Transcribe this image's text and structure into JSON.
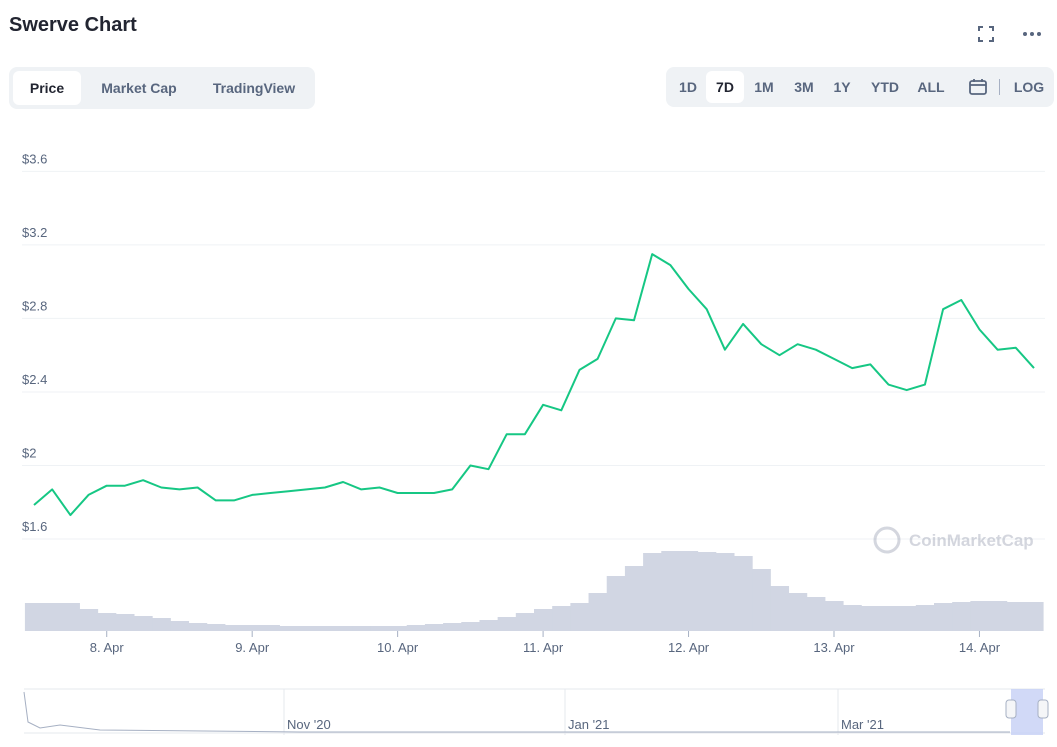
{
  "header": {
    "title": "Swerve Chart"
  },
  "tabs": [
    "Price",
    "Market Cap",
    "TradingView"
  ],
  "ranges": [
    "1D",
    "7D",
    "1M",
    "3M",
    "1Y",
    "YTD",
    "ALL"
  ],
  "log_button": "LOG",
  "watermark": "CoinMarketCap",
  "navigator": {
    "labels": [
      "Nov '20",
      "Jan '21",
      "Mar '21"
    ]
  },
  "chart_data": {
    "type": "line",
    "xlim": [
      0,
      55
    ],
    "xticks": [
      {
        "value": 4,
        "label": "8. Apr"
      },
      {
        "value": 12,
        "label": "9. Apr"
      },
      {
        "value": 20,
        "label": "10. Apr"
      },
      {
        "value": 28,
        "label": "11. Apr"
      },
      {
        "value": 36,
        "label": "12. Apr"
      },
      {
        "value": 44,
        "label": "13. Apr"
      },
      {
        "value": 52,
        "label": "14. Apr"
      }
    ],
    "ylim": [
      1.6,
      3.7
    ],
    "yticks": [
      {
        "value": 1.6,
        "label": "$1.6"
      },
      {
        "value": 2,
        "label": "$2"
      },
      {
        "value": 2.4,
        "label": "$2.4"
      },
      {
        "value": 2.8,
        "label": "$2.8"
      },
      {
        "value": 3.2,
        "label": "$3.2"
      },
      {
        "value": 3.6,
        "label": "$3.6"
      }
    ],
    "grid": true,
    "series": [
      {
        "name": "Price",
        "color": "#16c784",
        "values": [
          1.785,
          1.87,
          1.73,
          1.84,
          1.89,
          1.89,
          1.92,
          1.88,
          1.87,
          1.88,
          1.81,
          1.81,
          1.84,
          1.85,
          1.86,
          1.87,
          1.88,
          1.91,
          1.87,
          1.88,
          1.85,
          1.85,
          1.85,
          1.87,
          2.0,
          1.98,
          2.17,
          2.17,
          2.33,
          2.3,
          2.52,
          2.58,
          2.8,
          2.79,
          3.15,
          3.09,
          2.96,
          2.85,
          2.63,
          2.77,
          2.66,
          2.6,
          2.66,
          2.63,
          2.58,
          2.53,
          2.55,
          2.44,
          2.41,
          2.44,
          2.85,
          2.9,
          2.74,
          2.63,
          2.64,
          2.53
        ]
      }
    ],
    "volume": {
      "color": "#d1d6e3",
      "y2lim": [
        0,
        100
      ],
      "values": [
        28,
        28,
        28,
        22,
        18,
        17,
        15,
        13,
        10,
        8,
        7,
        6,
        6,
        6,
        5,
        5,
        5,
        5,
        5,
        5,
        5,
        6,
        7,
        8,
        9,
        11,
        14,
        18,
        22,
        25,
        28,
        38,
        55,
        65,
        78,
        80,
        80,
        79,
        78,
        75,
        62,
        45,
        38,
        34,
        30,
        26,
        25,
        25,
        25,
        26,
        28,
        29,
        30,
        30,
        29,
        29
      ]
    }
  }
}
